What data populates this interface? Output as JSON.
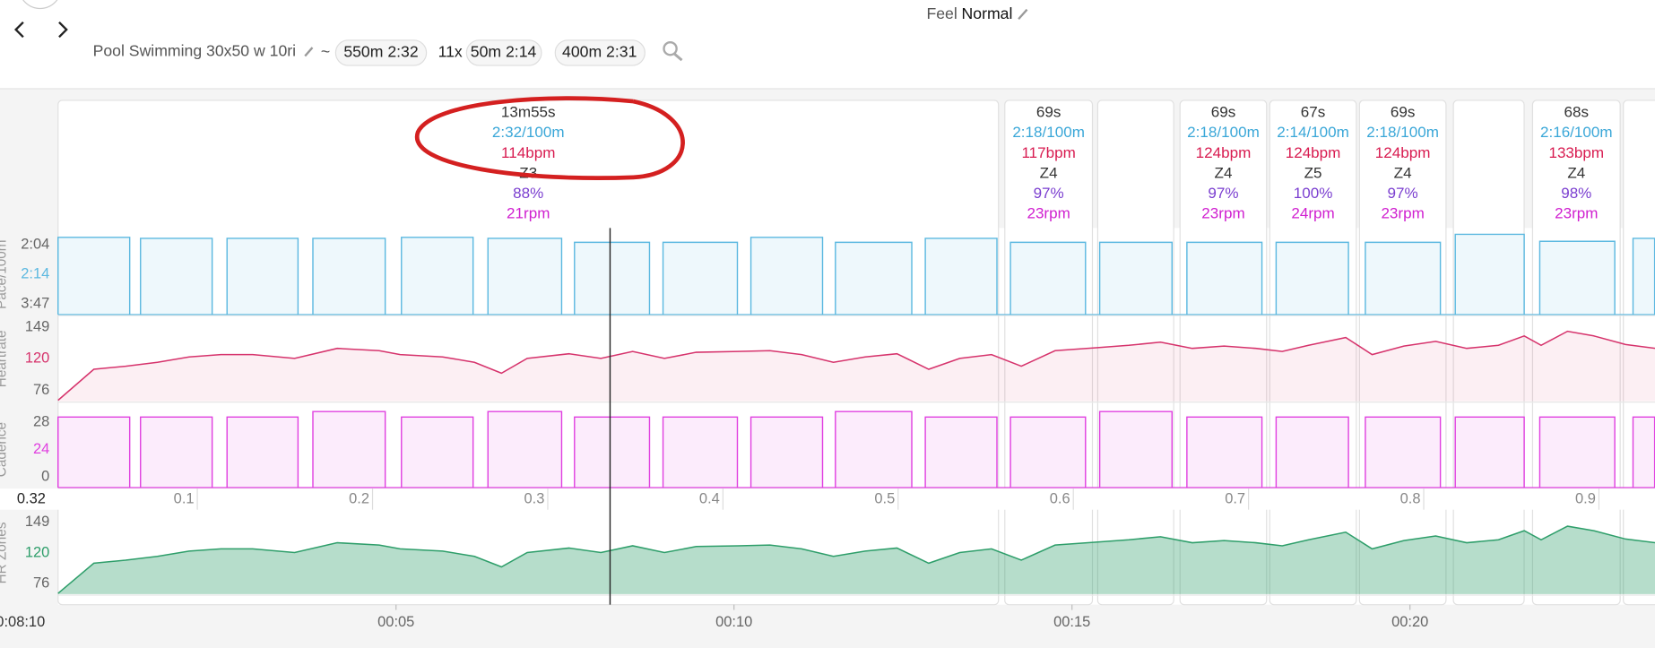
{
  "header": {
    "feel_label": "Feel",
    "feel_value": "Normal",
    "activity_name": "Pool Swimming 30x50 w 10ri",
    "separator": "~",
    "chips": [
      "550m 2:32",
      "50m 2:14",
      "400m 2:31"
    ],
    "repeat": "11x"
  },
  "intervals": [
    {
      "duration": "13m55s",
      "pace": "2:32/100m",
      "heart_rate": "114bpm",
      "zone": "Z3",
      "intensity": "88%",
      "cadence": "21rpm"
    },
    {
      "duration": "69s",
      "pace": "2:18/100m",
      "heart_rate": "117bpm",
      "zone": "Z4",
      "intensity": "97%",
      "cadence": "23rpm"
    },
    {
      "duration": "69s",
      "pace": "2:18/100m",
      "heart_rate": "124bpm",
      "zone": "Z4",
      "intensity": "97%",
      "cadence": "23rpm"
    },
    {
      "duration": "67s",
      "pace": "2:14/100m",
      "heart_rate": "124bpm",
      "zone": "Z5",
      "intensity": "100%",
      "cadence": "24rpm"
    },
    {
      "duration": "69s",
      "pace": "2:18/100m",
      "heart_rate": "124bpm",
      "zone": "Z4",
      "intensity": "97%",
      "cadence": "23rpm"
    },
    {
      "duration": "68s",
      "pace": "2:16/100m",
      "heart_rate": "133bpm",
      "zone": "Z4",
      "intensity": "98%",
      "cadence": "23rpm"
    }
  ],
  "laps": {
    "start": [
      0,
      1.22,
      2.5,
      3.77,
      5.08,
      6.36,
      7.64,
      8.95,
      10.25,
      11.5,
      12.83,
      14.09,
      15.41,
      16.7,
      18.02,
      19.34,
      20.67,
      21.92,
      23.3
    ],
    "end": [
      1.06,
      2.28,
      3.55,
      4.84,
      6.14,
      7.45,
      8.75,
      10.05,
      11.31,
      12.63,
      13.89,
      15.2,
      16.48,
      17.81,
      19.09,
      20.45,
      21.69,
      23.03,
      23.62
    ]
  },
  "time_axis": {
    "cursor": "0:08:10",
    "xlim": [
      0,
      23.625
    ],
    "xticks": [
      {
        "value": 5,
        "label": "00:05"
      },
      {
        "value": 10,
        "label": "00:10"
      },
      {
        "value": 15,
        "label": "00:15"
      },
      {
        "value": 20,
        "label": "00:20"
      }
    ]
  },
  "distance_axis": {
    "current": "0.32",
    "xlim": [
      0.0205,
      0.932
    ],
    "xticks": [
      0.1,
      0.2,
      0.3,
      0.4,
      0.5,
      0.6,
      0.7,
      0.8,
      0.9
    ]
  },
  "chart_data": [
    {
      "type": "step",
      "y_label": "Pace/100m",
      "color": "#5bb8e0",
      "ylim": [
        200,
        120
      ],
      "axis_labels": [
        "2:04",
        "2:14",
        "3:47"
      ],
      "values": [
        123,
        124,
        124,
        124,
        123,
        124,
        128,
        128,
        123,
        128,
        124,
        128,
        128,
        128,
        128,
        128,
        120,
        127,
        124
      ]
    },
    {
      "type": "line",
      "y_label": "Heartrate",
      "color": "#d6336c",
      "ylim": [
        58,
        167
      ],
      "axis_labels": [
        149,
        120,
        76
      ],
      "x": [
        0,
        0.53,
        1,
        1.47,
        1.94,
        2.41,
        2.88,
        3.5,
        4.13,
        4.75,
        5.06,
        5.69,
        6.16,
        6.56,
        6.94,
        7.56,
        8.03,
        8.5,
        8.97,
        9.44,
        10.06,
        10.53,
        11,
        11.47,
        11.94,
        12.41,
        12.88,
        13.34,
        13.81,
        14.25,
        14.75,
        15.38,
        15.84,
        16.31,
        16.78,
        17.25,
        17.72,
        18.11,
        18.5,
        19.05,
        19.44,
        19.91,
        20.38,
        20.84,
        21.31,
        21.69,
        21.94,
        22.33,
        22.72,
        23.19,
        23.63
      ],
      "values": [
        59,
        99,
        103,
        108,
        115,
        118,
        118,
        113,
        126,
        123,
        118,
        115,
        108,
        94,
        113,
        119,
        113,
        122,
        113,
        121,
        122,
        123,
        118,
        108,
        115,
        119,
        99,
        113,
        118,
        103,
        123,
        127,
        130,
        134,
        126,
        129,
        126,
        122,
        130,
        140,
        118,
        129,
        135,
        126,
        130,
        142,
        130,
        148,
        142,
        131,
        126
      ]
    },
    {
      "type": "step",
      "y_label": "Cadence",
      "color": "#e040e0",
      "ylim": [
        0,
        28
      ],
      "axis_labels": [
        28,
        24,
        0
      ],
      "values": [
        26,
        26,
        26,
        28,
        26,
        28,
        26,
        26,
        26,
        28,
        26,
        26,
        28,
        26,
        26,
        26,
        26,
        26,
        26
      ]
    },
    {
      "type": "area",
      "y_label": "HR Zones",
      "color": "#2e9e6a",
      "ylim": [
        58,
        167
      ],
      "axis_labels": [
        149,
        120,
        76
      ],
      "x": [
        0,
        0.53,
        1,
        1.47,
        1.94,
        2.41,
        2.88,
        3.5,
        4.13,
        4.75,
        5.06,
        5.69,
        6.16,
        6.56,
        6.94,
        7.56,
        8.03,
        8.5,
        8.97,
        9.44,
        10.06,
        10.53,
        11,
        11.47,
        11.94,
        12.41,
        12.88,
        13.34,
        13.81,
        14.25,
        14.75,
        15.38,
        15.84,
        16.31,
        16.78,
        17.25,
        17.72,
        18.11,
        18.5,
        19.05,
        19.44,
        19.91,
        20.38,
        20.84,
        21.31,
        21.69,
        21.94,
        22.33,
        22.72,
        23.19,
        23.63
      ],
      "values": [
        59,
        99,
        103,
        108,
        115,
        118,
        118,
        113,
        126,
        123,
        118,
        115,
        108,
        94,
        113,
        119,
        113,
        122,
        113,
        121,
        122,
        123,
        118,
        108,
        115,
        119,
        99,
        113,
        118,
        103,
        123,
        127,
        130,
        134,
        126,
        129,
        126,
        122,
        130,
        140,
        118,
        129,
        135,
        126,
        130,
        142,
        130,
        148,
        142,
        131,
        126
      ]
    }
  ]
}
